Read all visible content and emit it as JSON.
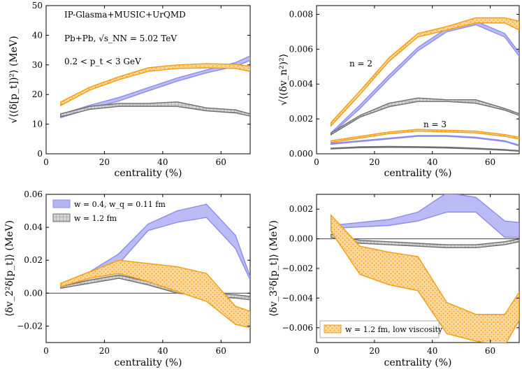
{
  "colors": {
    "blue": "#8c8cf0",
    "blue_fill": "#b4b4f5",
    "gray": "#6e6e6e",
    "gray_fill": "#c8c8c8",
    "orange": "#f39c12",
    "orange_fill": "#fbd79a"
  },
  "chart_data": [
    {
      "type": "area",
      "id": "p1",
      "title": "",
      "xlabel": "centrality (%)",
      "ylabel": "√⟨(δ[p_t])²⟩ (MeV)",
      "xlim": [
        0,
        70
      ],
      "ylim": [
        0,
        50
      ],
      "xticks": [
        "0",
        "20",
        "40",
        "60"
      ],
      "yticks": [
        "0",
        "10",
        "20",
        "30",
        "40",
        "50"
      ],
      "annotations": [
        "IP-Glasma+MUSIC+UrQMD",
        "Pb+Pb, √s_NN = 5.02 TeV",
        "0.2 < p_t < 3 GeV"
      ],
      "series": [
        {
          "name": "w = 0.4, w_q = 0.11 fm",
          "color": "blue",
          "x": [
            5,
            15,
            25,
            35,
            45,
            55,
            65,
            70
          ],
          "lo": [
            12.2,
            15.2,
            17.8,
            21.2,
            24.5,
            27.3,
            29.5,
            31.5
          ],
          "hi": [
            13.3,
            16.4,
            19.0,
            22.3,
            25.6,
            28.3,
            30.8,
            33.0
          ]
        },
        {
          "name": "w = 1.2 fm",
          "color": "gray",
          "x": [
            5,
            15,
            25,
            35,
            45,
            55,
            65,
            70
          ],
          "lo": [
            12.5,
            15.0,
            16.0,
            16.0,
            16.0,
            14.5,
            13.8,
            12.7
          ],
          "hi": [
            13.5,
            16.0,
            17.0,
            17.0,
            17.5,
            15.5,
            14.8,
            13.5
          ]
        },
        {
          "name": "w = 1.2 fm, low viscosity",
          "color": "orange",
          "x": [
            5,
            15,
            25,
            35,
            45,
            55,
            65,
            70
          ],
          "lo": [
            16.3,
            21.5,
            25.0,
            27.8,
            28.8,
            29.0,
            28.8,
            27.8
          ],
          "hi": [
            17.5,
            22.5,
            26.0,
            29.0,
            30.0,
            30.4,
            30.2,
            29.5
          ]
        }
      ]
    },
    {
      "type": "area",
      "id": "p2",
      "xlabel": "centrality (%)",
      "ylabel": "√⟨(δv_n²)²⟩",
      "xlim": [
        0,
        70
      ],
      "ylim": [
        0,
        0.0085
      ],
      "xticks": [
        "0",
        "20",
        "40",
        "60"
      ],
      "yticks": [
        "0.000",
        "0.002",
        "0.004",
        "0.006",
        "0.008"
      ],
      "annotations": [
        "n = 2",
        "n = 3"
      ],
      "series": [
        {
          "name": "blue n=2",
          "color": "blue",
          "x": [
            5,
            15,
            25,
            35,
            45,
            55,
            65,
            70
          ],
          "lo": [
            0.0011,
            0.0026,
            0.0043,
            0.0059,
            0.007,
            0.0074,
            0.0067,
            0.0056
          ],
          "hi": [
            0.0012,
            0.0028,
            0.0045,
            0.0061,
            0.0072,
            0.0076,
            0.0069,
            0.0058
          ]
        },
        {
          "name": "orange n=2",
          "color": "orange",
          "x": [
            5,
            15,
            25,
            35,
            45,
            55,
            65,
            70
          ],
          "lo": [
            0.0016,
            0.0034,
            0.0053,
            0.0067,
            0.0071,
            0.0075,
            0.0075,
            0.0071
          ],
          "hi": [
            0.0018,
            0.0036,
            0.0055,
            0.0069,
            0.0073,
            0.0078,
            0.0078,
            0.0076
          ]
        },
        {
          "name": "gray n=2",
          "color": "gray",
          "x": [
            5,
            15,
            25,
            35,
            45,
            55,
            65,
            70
          ],
          "lo": [
            0.0011,
            0.0021,
            0.0027,
            0.003,
            0.003,
            0.0029,
            0.0025,
            0.0022
          ],
          "hi": [
            0.0012,
            0.0022,
            0.0029,
            0.0032,
            0.0031,
            0.0031,
            0.0026,
            0.0023
          ]
        },
        {
          "name": "orange n=3",
          "color": "orange",
          "x": [
            5,
            15,
            25,
            35,
            45,
            55,
            65,
            70
          ],
          "lo": [
            0.00065,
            0.0009,
            0.00115,
            0.0013,
            0.00125,
            0.0012,
            0.001,
            0.00085
          ],
          "hi": [
            0.00075,
            0.001,
            0.00125,
            0.0014,
            0.00135,
            0.0013,
            0.0011,
            0.00095
          ]
        },
        {
          "name": "blue n=3",
          "color": "blue",
          "x": [
            5,
            15,
            25,
            35,
            45,
            55,
            65,
            70
          ],
          "lo": [
            0.00055,
            0.0007,
            0.00085,
            0.001,
            0.001,
            0.0009,
            0.0007,
            0.00045
          ],
          "hi": [
            0.0006,
            0.00075,
            0.0009,
            0.00105,
            0.00105,
            0.00095,
            0.00075,
            0.0005
          ]
        },
        {
          "name": "gray n=3",
          "color": "gray",
          "x": [
            5,
            15,
            25,
            35,
            45,
            55,
            65,
            70
          ],
          "lo": [
            0.00028,
            0.00035,
            0.00037,
            0.00036,
            0.00033,
            0.00028,
            0.0002,
            0.00015
          ],
          "hi": [
            0.00032,
            0.0004,
            0.00042,
            0.00041,
            0.00038,
            0.00032,
            0.00024,
            0.00018
          ]
        }
      ]
    },
    {
      "type": "area",
      "id": "p3",
      "xlabel": "centrality (%)",
      "ylabel": "⟨δv_2²δ[p_t]⟩ (MeV)",
      "xlim": [
        0,
        70
      ],
      "ylim": [
        -0.03,
        0.06
      ],
      "xticks": [
        "0",
        "20",
        "40",
        "60"
      ],
      "yticks": [
        "−0.02",
        "0.00",
        "0.02",
        "0.04",
        "0.06"
      ],
      "legend": [
        "w = 0.4, w_q = 0.11 fm",
        "w = 1.2 fm"
      ],
      "series": [
        {
          "name": "w = 0.4, w_q = 0.11 fm",
          "color": "blue",
          "x": [
            5,
            15,
            25,
            35,
            45,
            55,
            65,
            70
          ],
          "lo": [
            0.004,
            0.011,
            0.018,
            0.038,
            0.043,
            0.046,
            0.027,
            0.008
          ],
          "hi": [
            0.005,
            0.013,
            0.024,
            0.042,
            0.05,
            0.054,
            0.035,
            0.01
          ]
        },
        {
          "name": "w = 1.2 fm",
          "color": "gray",
          "x": [
            5,
            15,
            25,
            35,
            45,
            55,
            65,
            70
          ],
          "lo": [
            0.003,
            0.006,
            0.009,
            0.005,
            0.0,
            -0.002,
            -0.003,
            -0.004
          ],
          "hi": [
            0.004,
            0.008,
            0.011,
            0.007,
            0.002,
            0.0,
            -0.001,
            -0.002
          ]
        },
        {
          "name": "w = 1.2 fm, low viscosity",
          "color": "orange",
          "x": [
            5,
            15,
            25,
            35,
            45,
            55,
            65,
            70
          ],
          "lo": [
            0.004,
            0.009,
            0.012,
            0.007,
            0.001,
            -0.005,
            -0.019,
            -0.021
          ],
          "hi": [
            0.006,
            0.013,
            0.02,
            0.018,
            0.016,
            0.012,
            -0.008,
            -0.011
          ]
        }
      ]
    },
    {
      "type": "area",
      "id": "p4",
      "xlabel": "centrality (%)",
      "ylabel": "⟨δv_3²δ[p_t]⟩ (MeV)",
      "xlim": [
        0,
        70
      ],
      "ylim": [
        -0.007,
        0.003
      ],
      "xticks": [
        "0",
        "20",
        "40",
        "60"
      ],
      "yticks": [
        "−0.006",
        "−0.004",
        "−0.002",
        "0.000",
        "0.002"
      ],
      "legend": [
        "w = 1.2 fm, low viscosity"
      ],
      "series": [
        {
          "name": "w = 0.4, w_q = 0.11 fm",
          "color": "blue",
          "x": [
            5,
            15,
            25,
            35,
            45,
            55,
            65,
            70
          ],
          "lo": [
            0.0007,
            0.0008,
            0.0009,
            0.0012,
            0.0018,
            0.0018,
            0.0001,
            0.0001
          ],
          "hi": [
            0.0009,
            0.0011,
            0.0013,
            0.0018,
            0.0031,
            0.0028,
            0.0012,
            0.0011
          ]
        },
        {
          "name": "w = 1.2 fm",
          "color": "gray",
          "x": [
            5,
            15,
            25,
            35,
            45,
            55,
            65,
            70
          ],
          "lo": [
            0.0001,
            -0.0003,
            -0.0004,
            -0.0005,
            -0.0006,
            -0.0006,
            -0.0004,
            -0.0002
          ],
          "hi": [
            0.0003,
            -0.0001,
            -0.0002,
            -0.0003,
            -0.0004,
            -0.0004,
            -0.0002,
            0.0
          ]
        },
        {
          "name": "w = 1.2 fm, low viscosity",
          "color": "orange",
          "x": [
            5,
            15,
            25,
            35,
            45,
            55,
            65,
            70
          ],
          "lo": [
            0.0005,
            -0.0024,
            -0.0031,
            -0.0035,
            -0.0064,
            -0.0069,
            -0.0072,
            -0.0055
          ],
          "hi": [
            0.0016,
            -0.0005,
            -0.0009,
            -0.0012,
            -0.0043,
            -0.0051,
            -0.0051,
            -0.0036
          ]
        }
      ]
    }
  ]
}
